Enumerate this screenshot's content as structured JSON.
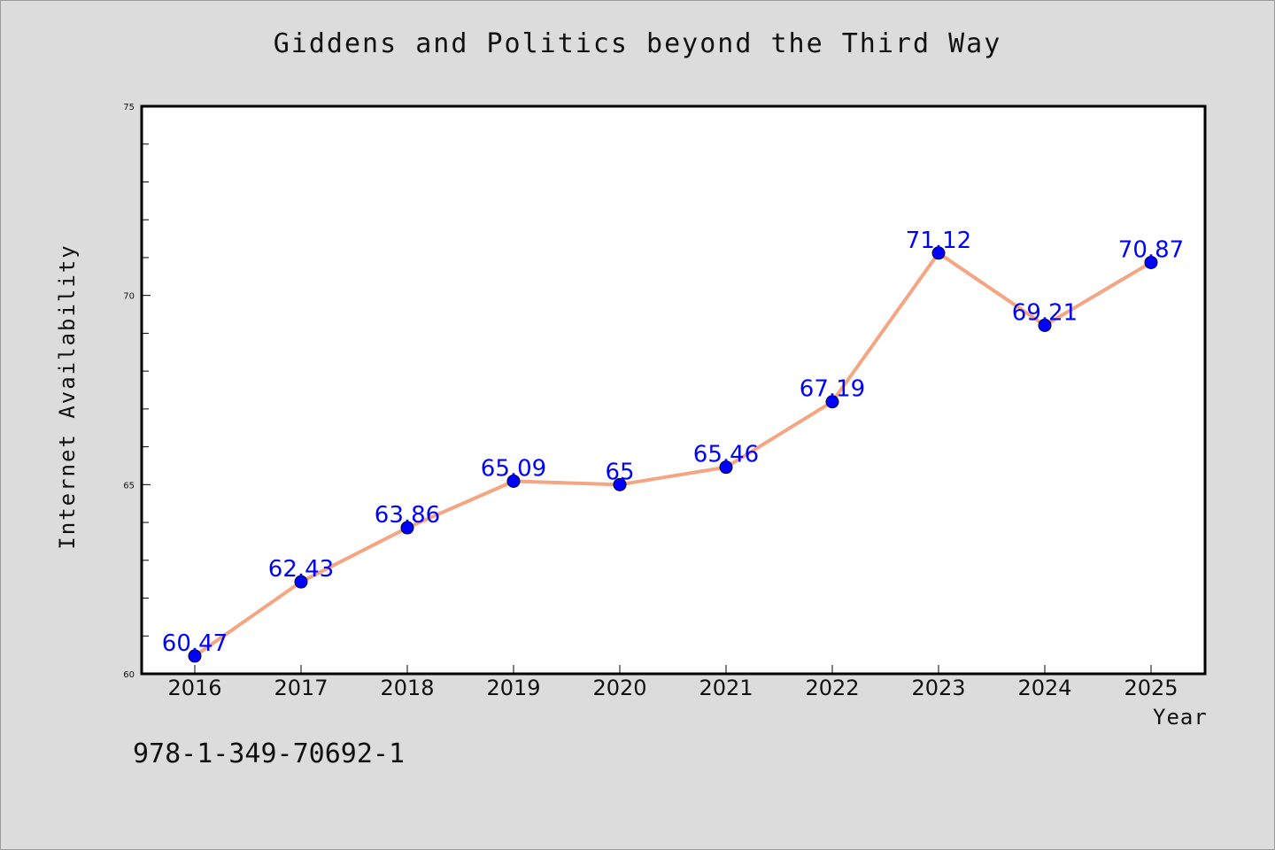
{
  "chart_data": {
    "type": "line",
    "title": "Giddens and Politics beyond the Third Way",
    "xlabel": "Year",
    "ylabel": "Internet Availability",
    "categories": [
      "2016",
      "2017",
      "2018",
      "2019",
      "2020",
      "2021",
      "2022",
      "2023",
      "2024",
      "2025"
    ],
    "values": [
      60.47,
      62.43,
      63.86,
      65.09,
      65,
      65.46,
      67.19,
      71.12,
      69.21,
      70.87
    ],
    "data_labels": [
      "60.47",
      "62.43",
      "63.86",
      "65.09",
      "65",
      "65.46",
      "67.19",
      "71.12",
      "69.21",
      "70.87"
    ],
    "ylim": [
      60,
      75
    ],
    "yticks": [
      "60",
      "65",
      "70",
      "75"
    ],
    "grid": false,
    "line_color": "#f4a582",
    "marker_color": "#0000ff",
    "label_color": "#0000ff"
  },
  "footer": {
    "isbn": "978-1-349-70692-1"
  }
}
